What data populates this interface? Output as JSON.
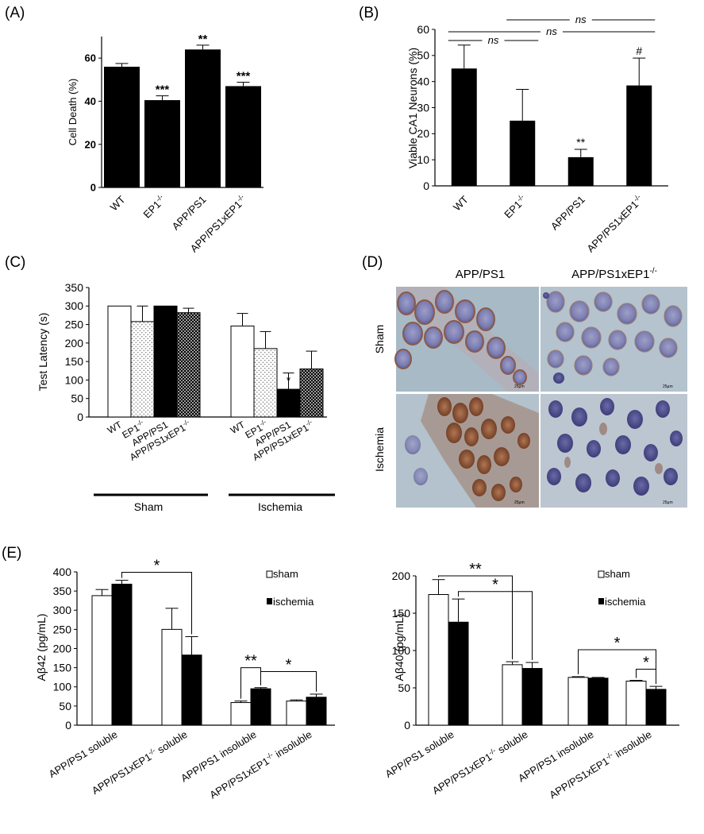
{
  "chart_data": [
    {
      "panel": "(A)",
      "type": "bar",
      "categories": [
        "WT",
        "EP1-/-",
        "APP/PS1",
        "APP/PS1xEP1-/-"
      ],
      "values": [
        56,
        40.5,
        64,
        47
      ],
      "errors": [
        1.5,
        2.0,
        2.0,
        1.8
      ],
      "annotations": [
        "",
        "***",
        "**",
        "***"
      ],
      "ylabel": "Cell Death (%)",
      "ylim": [
        0,
        70
      ],
      "yticks": [
        0,
        20,
        40,
        60
      ]
    },
    {
      "panel": "(B)",
      "type": "bar",
      "categories": [
        "WT",
        "EP1-/-",
        "APP/PS1",
        "APP/PS1xEP1-/-"
      ],
      "values": [
        45,
        25,
        11,
        38.5
      ],
      "errors": [
        9,
        12,
        3,
        10.5
      ],
      "annotations": [
        "",
        "",
        "**",
        "#"
      ],
      "comparisons": [
        "ns",
        "ns",
        "ns"
      ],
      "ylabel": "Viable CA1 Neurons (%)",
      "ylim": [
        0,
        60
      ],
      "yticks": [
        0,
        10,
        20,
        30,
        40,
        50,
        60
      ]
    },
    {
      "panel": "(C)",
      "type": "bar",
      "categories": [
        "WT",
        "EP1-/-",
        "APP/PS1",
        "APP/PS1xEP1-/-"
      ],
      "groups": [
        "Sham",
        "Ischemia"
      ],
      "series": [
        {
          "values": [
            300,
            258,
            300,
            282
          ],
          "errors": [
            0,
            42,
            0,
            12
          ]
        },
        {
          "values": [
            246,
            185,
            75,
            130
          ],
          "errors": [
            34,
            46,
            44,
            48
          ]
        }
      ],
      "annotations": [
        "",
        "",
        "",
        "",
        "",
        "",
        "*",
        ""
      ],
      "ylabel": "Test Latency (s)",
      "ylim": [
        0,
        350
      ],
      "yticks": [
        0,
        50,
        100,
        150,
        200,
        250,
        300,
        350
      ]
    },
    {
      "panel": "(E)",
      "type": "bar",
      "categories": [
        "APP/PS1 soluble",
        "APP/PS1xEP1-/- soluble",
        "APP/PS1 insoluble",
        "APP/PS1xEP1-/- insoluble"
      ],
      "series": [
        {
          "name": "sham",
          "values": [
            338,
            250,
            59,
            63
          ],
          "errors": [
            16,
            55,
            4,
            3
          ]
        },
        {
          "name": "ischemia",
          "values": [
            368,
            183,
            95,
            73
          ],
          "errors": [
            10,
            48,
            3,
            8
          ]
        }
      ],
      "ylabel": "Aβ42 (pg/mL)",
      "ylim": [
        0,
        400
      ],
      "yticks": [
        0,
        50,
        100,
        150,
        200,
        250,
        300,
        350,
        400
      ],
      "significance": [
        "*",
        "**",
        "*"
      ]
    },
    {
      "type": "bar",
      "categories": [
        "APP/PS1 soluble",
        "APP/PS1xEP1-/- soluble",
        "APP/PS1 insoluble",
        "APP/PS1xEP1-/- insoluble"
      ],
      "series": [
        {
          "name": "sham",
          "values": [
            175,
            81,
            64,
            59
          ],
          "errors": [
            20,
            4,
            1,
            1
          ]
        },
        {
          "name": "ischemia",
          "values": [
            138,
            76,
            63,
            48
          ],
          "errors": [
            31,
            8,
            1,
            4
          ]
        }
      ],
      "ylabel": "Aβ40 (pg/mL)",
      "ylim": [
        0,
        200
      ],
      "yticks": [
        0,
        50,
        100,
        150,
        200
      ],
      "significance": [
        "**",
        "*",
        "*",
        "*"
      ]
    }
  ],
  "panel_d": {
    "label": "(D)",
    "columns": [
      "APP/PS1",
      "APP/PS1xEP1-/-"
    ],
    "rows": [
      "Sham",
      "Ischemia"
    ],
    "scale_bar": "25μm"
  }
}
